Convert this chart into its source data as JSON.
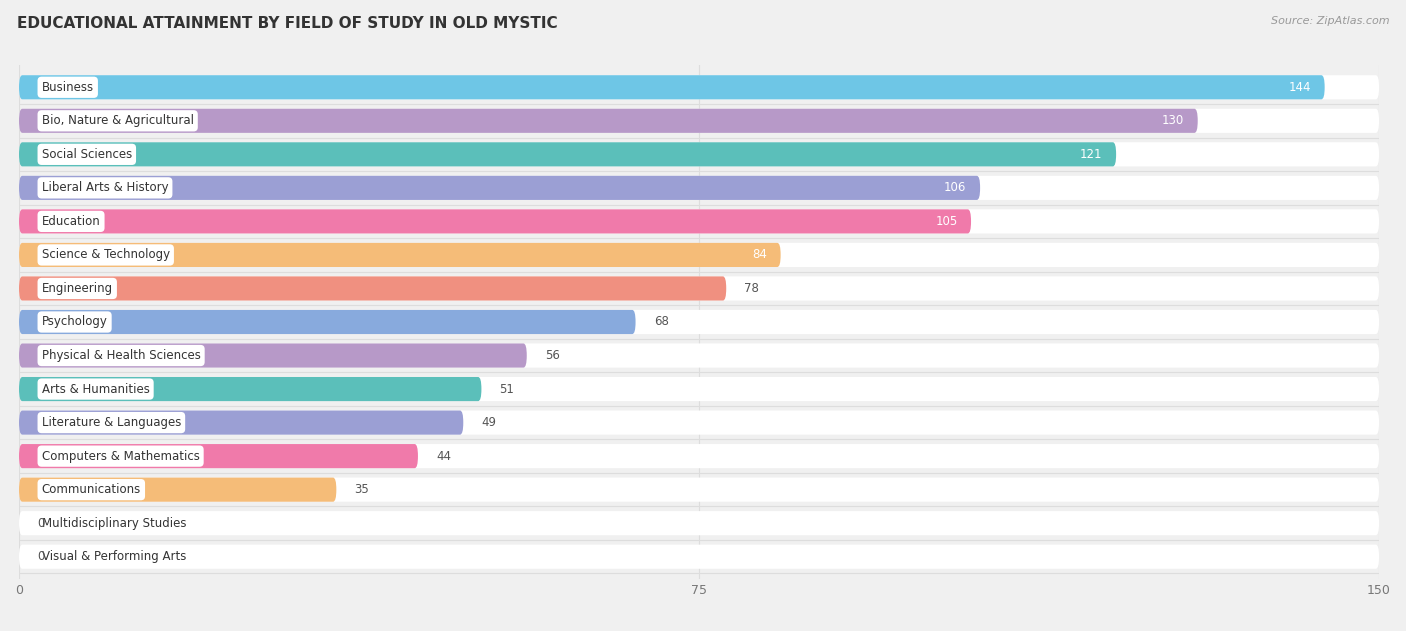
{
  "title": "EDUCATIONAL ATTAINMENT BY FIELD OF STUDY IN OLD MYSTIC",
  "source": "Source: ZipAtlas.com",
  "categories": [
    "Business",
    "Bio, Nature & Agricultural",
    "Social Sciences",
    "Liberal Arts & History",
    "Education",
    "Science & Technology",
    "Engineering",
    "Psychology",
    "Physical & Health Sciences",
    "Arts & Humanities",
    "Literature & Languages",
    "Computers & Mathematics",
    "Communications",
    "Multidisciplinary Studies",
    "Visual & Performing Arts"
  ],
  "values": [
    144,
    130,
    121,
    106,
    105,
    84,
    78,
    68,
    56,
    51,
    49,
    44,
    35,
    0,
    0
  ],
  "bar_colors": [
    "#6ec6e6",
    "#b799c8",
    "#5bbfba",
    "#9b9fd4",
    "#f07aaa",
    "#f5bc78",
    "#f09080",
    "#88aadd",
    "#b799c8",
    "#5bbfba",
    "#9b9fd4",
    "#f07aaa",
    "#f5bc78",
    "#f09080",
    "#88aadd"
  ],
  "white_value_threshold": 84,
  "xlim_max": 150,
  "xticks": [
    0,
    75,
    150
  ],
  "page_bg": "#f0f0f0",
  "row_bg": "#ffffff",
  "separator_color": "#dddddd",
  "title_fontsize": 11,
  "source_fontsize": 8,
  "label_fontsize": 8.5,
  "value_fontsize": 8.5
}
